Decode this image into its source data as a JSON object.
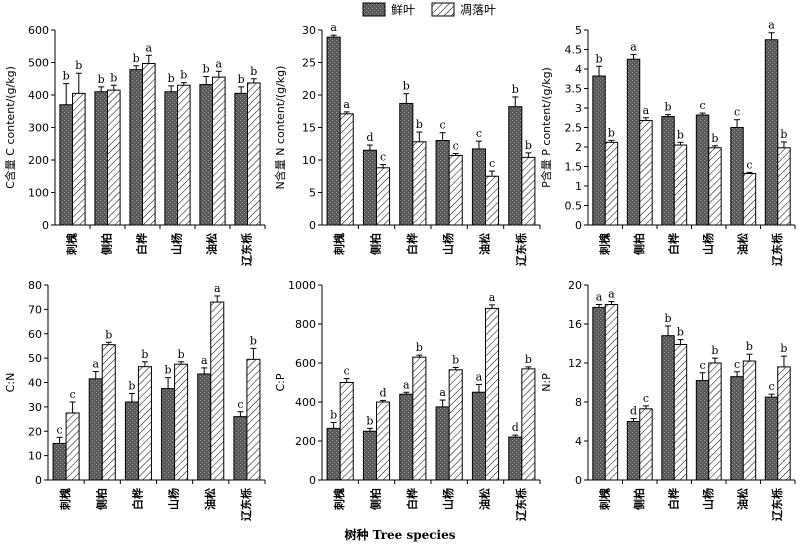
{
  "legend": {
    "items": [
      {
        "key": "fresh",
        "label": "鲜叶"
      },
      {
        "key": "litter",
        "label": "凋落叶"
      }
    ]
  },
  "x_axis_title": "树种 Tree species",
  "colors": {
    "fresh": "#555555",
    "litter": "#ffffff"
  },
  "chart_data": [
    {
      "id": "C",
      "type": "bar",
      "ylabel": "C含量 C content/(g/kg)",
      "ylim": [
        0,
        600
      ],
      "yticks": [
        0,
        100,
        200,
        300,
        400,
        500,
        600
      ],
      "categories": [
        "刺槐",
        "侧柏",
        "白桦",
        "山杨",
        "油松",
        "辽东栎"
      ],
      "series": [
        {
          "name": "鲜叶",
          "values": [
            370,
            410,
            478,
            410,
            432,
            405
          ],
          "errors": [
            65,
            15,
            12,
            18,
            25,
            20
          ],
          "letters": [
            "b",
            "b",
            "b",
            "b",
            "b",
            "b"
          ]
        },
        {
          "name": "凋落叶",
          "values": [
            405,
            415,
            497,
            430,
            455,
            437
          ],
          "errors": [
            62,
            15,
            25,
            8,
            18,
            13
          ],
          "letters": [
            "b",
            "b",
            "a",
            "b",
            "a",
            "b"
          ]
        }
      ]
    },
    {
      "id": "N",
      "type": "bar",
      "ylabel": "N含量 N content/(g/kg)",
      "ylim": [
        0,
        30
      ],
      "yticks": [
        0,
        5,
        10,
        15,
        20,
        25,
        30
      ],
      "categories": [
        "刺槐",
        "侧柏",
        "白桦",
        "山杨",
        "油松",
        "辽东栎"
      ],
      "series": [
        {
          "name": "鲜叶",
          "values": [
            28.9,
            11.5,
            18.7,
            13.0,
            11.7,
            18.2
          ],
          "errors": [
            0.3,
            0.8,
            1.5,
            1.2,
            1.2,
            1.5
          ],
          "letters": [
            "a",
            "d",
            "b",
            "c",
            "c",
            "b"
          ]
        },
        {
          "name": "凋落叶",
          "values": [
            17.1,
            8.8,
            12.8,
            10.7,
            7.5,
            10.4
          ],
          "errors": [
            0.3,
            0.5,
            1.5,
            0.3,
            0.8,
            0.7
          ],
          "letters": [
            "a",
            "c",
            "b",
            "c",
            "c",
            "b"
          ]
        }
      ]
    },
    {
      "id": "P",
      "type": "bar",
      "ylabel": "P含量 P content/(g/kg)",
      "ylim": [
        0,
        5
      ],
      "yticks": [
        0,
        0.5,
        1,
        1.5,
        2,
        2.5,
        3,
        3.5,
        4,
        4.5,
        5
      ],
      "categories": [
        "刺槐",
        "侧柏",
        "白桦",
        "山杨",
        "油松",
        "辽东栎"
      ],
      "series": [
        {
          "name": "鲜叶",
          "values": [
            3.82,
            4.25,
            2.78,
            2.82,
            2.5,
            4.75
          ],
          "errors": [
            0.25,
            0.12,
            0.05,
            0.05,
            0.2,
            0.18
          ],
          "letters": [
            "b",
            "a",
            "b",
            "c",
            "c",
            "a"
          ]
        },
        {
          "name": "凋落叶",
          "values": [
            2.12,
            2.68,
            2.05,
            1.98,
            1.32,
            1.98
          ],
          "errors": [
            0.05,
            0.07,
            0.07,
            0.05,
            0.03,
            0.15
          ],
          "letters": [
            "b",
            "a",
            "b",
            "b",
            "c",
            "b"
          ]
        }
      ]
    },
    {
      "id": "CN",
      "type": "bar",
      "ylabel": "C:N",
      "ylim": [
        0,
        80
      ],
      "yticks": [
        0,
        10,
        20,
        30,
        40,
        50,
        60,
        70,
        80
      ],
      "categories": [
        "刺槐",
        "侧柏",
        "白桦",
        "山杨",
        "油松",
        "辽东栎"
      ],
      "series": [
        {
          "name": "鲜叶",
          "values": [
            15,
            41.5,
            32,
            37.5,
            43.5,
            26
          ],
          "errors": [
            2.5,
            3,
            3.5,
            4.5,
            2.5,
            2
          ],
          "letters": [
            "c",
            "a",
            "b",
            "b",
            "a",
            "c"
          ]
        },
        {
          "name": "凋落叶",
          "values": [
            27.5,
            55.5,
            46.5,
            47.5,
            73,
            49.5
          ],
          "errors": [
            4.5,
            1,
            2,
            1,
            2.5,
            4.5
          ],
          "letters": [
            "c",
            "b",
            "b",
            "b",
            "a",
            "b"
          ]
        }
      ]
    },
    {
      "id": "CP",
      "type": "bar",
      "ylabel": "C:P",
      "ylim": [
        0,
        1000
      ],
      "yticks": [
        0,
        200,
        400,
        600,
        800,
        1000
      ],
      "categories": [
        "刺槐",
        "侧柏",
        "白桦",
        "山杨",
        "油松",
        "辽东栎"
      ],
      "series": [
        {
          "name": "鲜叶",
          "values": [
            265,
            250,
            440,
            375,
            450,
            220
          ],
          "errors": [
            30,
            15,
            10,
            35,
            40,
            10
          ],
          "letters": [
            "b",
            "b",
            "a",
            "a",
            "a",
            "d"
          ]
        },
        {
          "name": "凋落叶",
          "values": [
            500,
            400,
            630,
            565,
            880,
            570
          ],
          "errors": [
            20,
            8,
            10,
            12,
            18,
            10
          ],
          "letters": [
            "c",
            "d",
            "b",
            "b",
            "a",
            "b"
          ]
        }
      ]
    },
    {
      "id": "NP",
      "type": "bar",
      "ylabel": "N:P",
      "ylim": [
        0,
        20
      ],
      "yticks": [
        0,
        4,
        8,
        12,
        16,
        20
      ],
      "categories": [
        "刺槐",
        "侧柏",
        "白桦",
        "山杨",
        "油松",
        "辽东栎"
      ],
      "series": [
        {
          "name": "鲜叶",
          "values": [
            17.7,
            6.0,
            14.8,
            10.2,
            10.6,
            8.5
          ],
          "errors": [
            0.3,
            0.3,
            1.0,
            0.8,
            0.5,
            0.3
          ],
          "letters": [
            "a",
            "d",
            "b",
            "c",
            "c",
            "c"
          ]
        },
        {
          "name": "凋落叶",
          "values": [
            18.0,
            7.3,
            13.9,
            12.0,
            12.2,
            11.6
          ],
          "errors": [
            0.3,
            0.3,
            0.5,
            0.5,
            0.7,
            1.1
          ],
          "letters": [
            "a",
            "c",
            "b",
            "b",
            "b",
            "b"
          ]
        }
      ]
    }
  ]
}
